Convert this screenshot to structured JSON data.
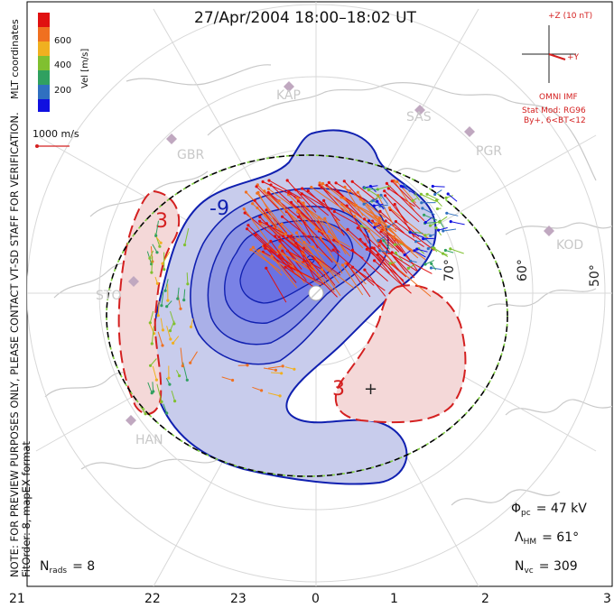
{
  "title": "27/Apr/2004 18:00–18:02 UT",
  "colorbar": {
    "ticks": [
      "600",
      "400",
      "200"
    ],
    "unit_label": "Vel [m/s]",
    "colors": [
      "#e01010",
      "#f07020",
      "#f0b020",
      "#80c030",
      "#30a060",
      "#3070c0",
      "#1010e0"
    ]
  },
  "coordinates_label": "MLT coordinates",
  "verification_note": "NOTE: FOR PREVIEW PURPOSES ONLY, PLEASE CONTACT VT-SD STAFF FOR VERIFICATION.",
  "fit_note": "FitOrder: 8, mapEX format",
  "scale_vector_label": "1000 m/s",
  "imf": {
    "bz_label": "+Z (10 nT)",
    "by_label": "+Y",
    "source_label": "OMNI IMF",
    "model_label": "Stat Mod: RG96",
    "model_params": "By+, 6<BT<12"
  },
  "stations": [
    "KAP",
    "SAS",
    "PGR",
    "KOD",
    "GBR",
    "STO",
    "HAN"
  ],
  "latitude_labels": [
    "70°",
    "60°",
    "50°"
  ],
  "contour_labels": [
    "-9",
    "3",
    "3"
  ],
  "stats": {
    "phi_pc_label": "Φ",
    "phi_pc_sub": "pc",
    "phi_pc_value": "= 47 kV",
    "lambda_hm_label": "Λ",
    "lambda_hm_sub": "HM",
    "lambda_hm_value": "= 61°",
    "n_vc_label": "N",
    "n_vc_sub": "vc",
    "n_vc_value": "= 309",
    "n_rads_label": "N",
    "n_rads_sub": "rads",
    "n_rads_value": "= 8"
  },
  "mlt_axis": [
    "21",
    "22",
    "23",
    "0",
    "1",
    "2",
    "3"
  ],
  "palette": {
    "negative_fill": "#c8ccec",
    "negative_inner": "#7a82e6",
    "negative_line": "#1020b0",
    "positive_fill": "#f4d8d8",
    "positive_line": "#d42020",
    "map_line": "#c8c8c8",
    "grid_line": "#d8d8d8",
    "boundary": "#000000",
    "boundary_dash": "#80d040"
  }
}
